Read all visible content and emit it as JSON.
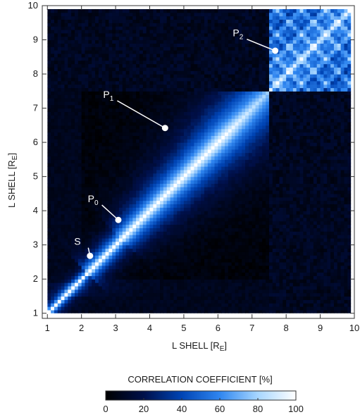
{
  "chart_data": {
    "type": "heatmap",
    "xlabel": "L SHELL [R",
    "xlabel_sub": "E",
    "xlabel_close": "]",
    "ylabel": "L SHELL [R",
    "ylabel_sub": "E",
    "ylabel_close": "]",
    "xlim": [
      0.85,
      10.0
    ],
    "ylim": [
      0.85,
      10.0
    ],
    "x_ticks": [
      1,
      2,
      3,
      4,
      5,
      6,
      7,
      8,
      9,
      10
    ],
    "y_ticks": [
      1,
      2,
      3,
      4,
      5,
      6,
      7,
      8,
      9,
      10
    ],
    "data_extent": [
      1.0,
      9.9
    ],
    "grid_step": 0.1,
    "colorbar": {
      "title": "CORRELATION COEFFICIENT [%]",
      "ticks": [
        0,
        20,
        40,
        60,
        80,
        100
      ],
      "range": [
        0,
        100
      ],
      "colors": [
        "#000000",
        "#00104a",
        "#0044b4",
        "#2f86f0",
        "#a7d6ff",
        "#ffffff"
      ]
    },
    "annotations": [
      {
        "name": "S",
        "sub": "",
        "x": 2.25,
        "y": 2.68,
        "label_x": 1.95,
        "label_y": 3.0
      },
      {
        "name": "P",
        "sub": "0",
        "x": 3.08,
        "y": 3.73,
        "label_x": 2.35,
        "label_y": 4.25
      },
      {
        "name": "P",
        "sub": "1",
        "x": 4.45,
        "y": 6.42,
        "label_x": 2.8,
        "label_y": 7.3
      },
      {
        "name": "P",
        "sub": "2",
        "x": 7.68,
        "y": 8.68,
        "label_x": 6.6,
        "label_y": 9.1
      }
    ]
  }
}
